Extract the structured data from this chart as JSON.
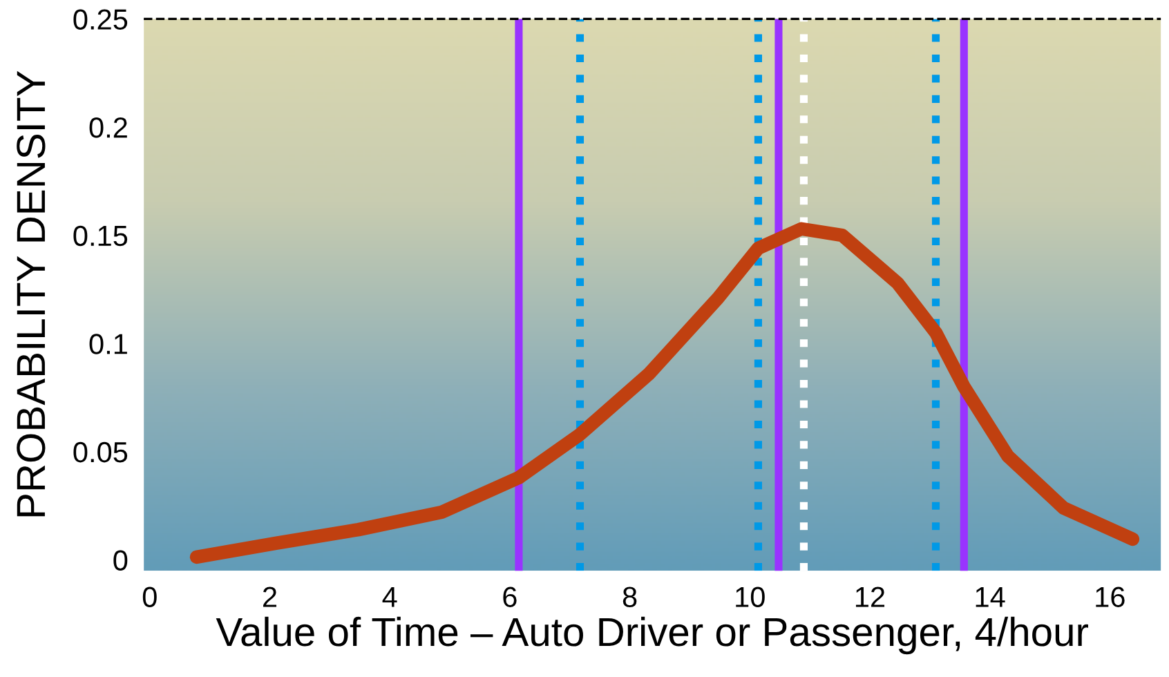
{
  "chart_data": {
    "type": "line",
    "xlabel": "Value of Time – Auto Driver or Passenger, 4/hour",
    "ylabel": "PROBABILITY DENSITY",
    "xlim": [
      -0.1,
      16.85
    ],
    "xticks": [
      {
        "value": 0,
        "label": "0"
      },
      {
        "value": 2,
        "label": "2"
      },
      {
        "value": 4,
        "label": "4"
      },
      {
        "value": 6,
        "label": "6"
      },
      {
        "value": 8,
        "label": "8"
      },
      {
        "value": 10,
        "label": "10"
      },
      {
        "value": 12,
        "label": "12"
      },
      {
        "value": 14,
        "label": "14"
      },
      {
        "value": 16,
        "label": "16"
      }
    ],
    "ylim": [
      -0.005,
      0.25
    ],
    "yticks": [
      0,
      0.05,
      0.1,
      0.15,
      0.2,
      0.25
    ],
    "grid": false,
    "marker": "none",
    "line_style": "solid",
    "series": [
      {
        "color": "#c04010",
        "x": [
          0.78,
          2.1,
          3.48,
          4.86,
          6.15,
          7.17,
          8.32,
          9.47,
          10.14,
          10.86,
          11.54,
          12.46,
          13.1,
          13.57,
          14.3,
          15.23,
          16.38
        ],
        "values": [
          0.0013,
          0.0077,
          0.014,
          0.022,
          0.038,
          0.058,
          0.086,
          0.121,
          0.144,
          0.153,
          0.15,
          0.128,
          0.105,
          0.08,
          0.048,
          0.024,
          0.0096
        ]
      }
    ],
    "ref_lines": [
      {
        "axis": "x",
        "value": 6.15,
        "color": "#9933ff",
        "line_style": "solid"
      },
      {
        "axis": "x",
        "value": 7.17,
        "color": "#0099e6",
        "line_style": "dotted"
      },
      {
        "axis": "x",
        "value": 10.14,
        "color": "#0099e6",
        "line_style": "dotted"
      },
      {
        "axis": "x",
        "value": 10.48,
        "color": "#9933ff",
        "line_style": "solid"
      },
      {
        "axis": "x",
        "value": 10.9,
        "color": "#ffffff",
        "line_style": "dotted"
      },
      {
        "axis": "x",
        "value": 13.1,
        "color": "#0099e6",
        "line_style": "dotted"
      },
      {
        "axis": "x",
        "value": 13.57,
        "color": "#9933ff",
        "line_style": "solid"
      },
      {
        "axis": "y",
        "value": 0.25,
        "color": "#000000",
        "line_style": "dashed"
      }
    ]
  }
}
